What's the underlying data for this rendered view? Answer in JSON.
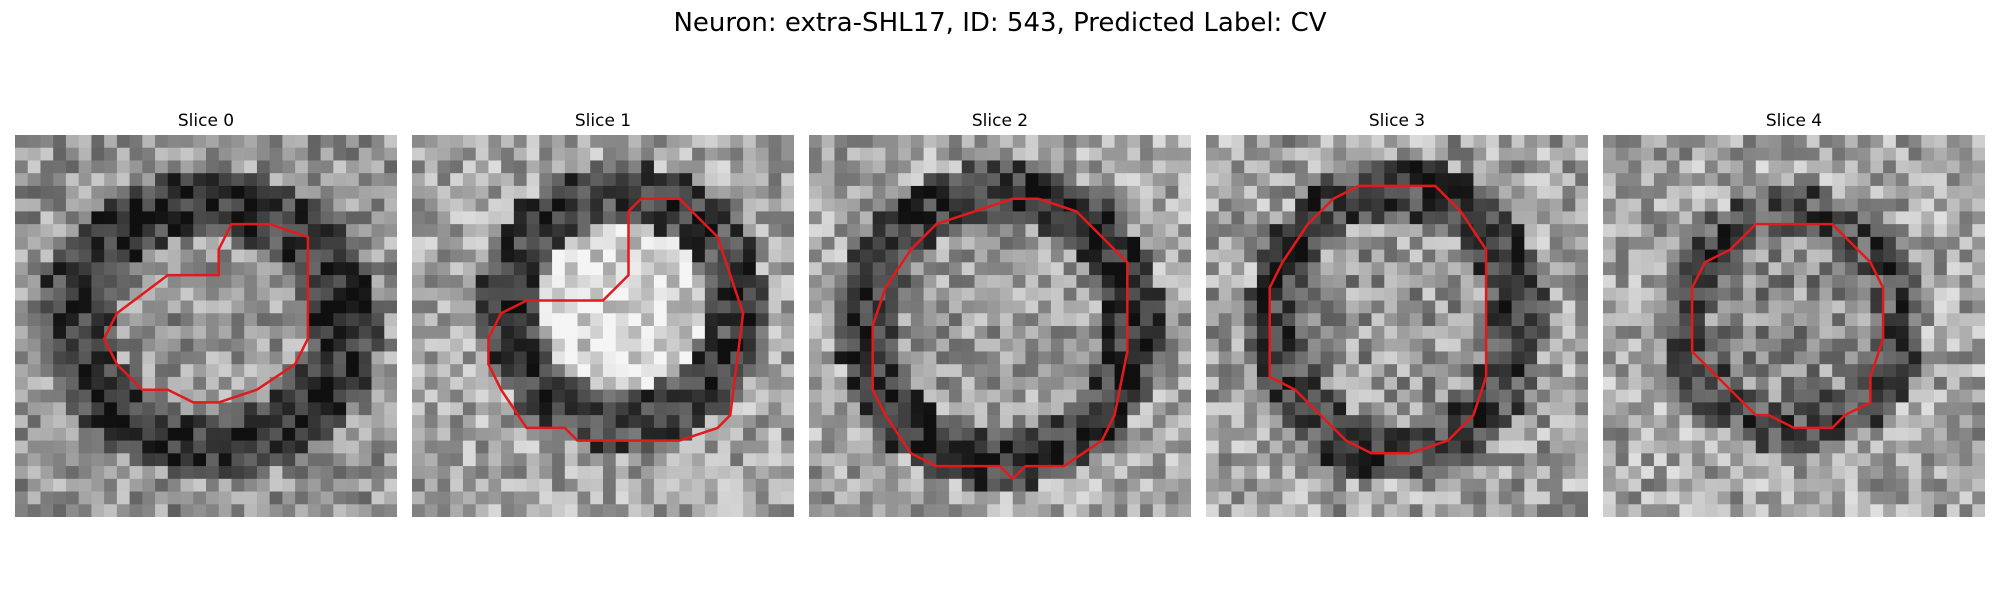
{
  "figure": {
    "title": "Neuron: extra-SHL17, ID: 543, Predicted Label: CV"
  },
  "panels": [
    {
      "title": "Slice 0"
    },
    {
      "title": "Slice 1"
    },
    {
      "title": "Slice 2"
    },
    {
      "title": "Slice 3"
    },
    {
      "title": "Slice 4"
    }
  ],
  "colors": {
    "contour": "#e31a1c",
    "background": "#ffffff",
    "image_colormap": "grayscale"
  }
}
